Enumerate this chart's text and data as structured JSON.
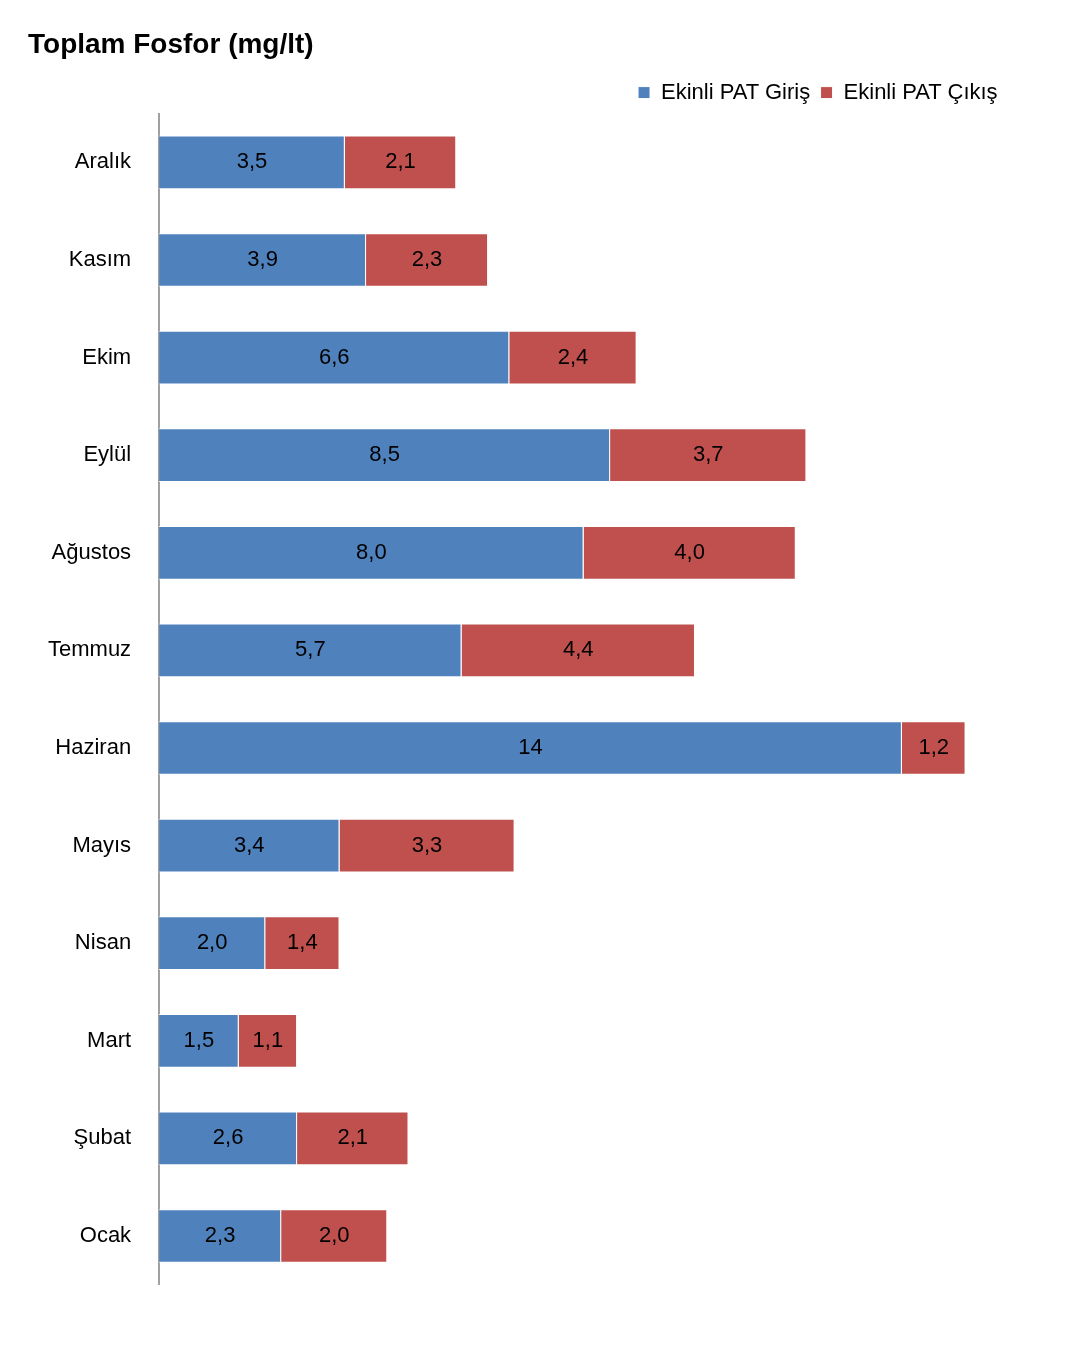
{
  "chart_data": {
    "type": "bar",
    "orientation": "horizontal",
    "stacked": true,
    "title": "Toplam Fosfor (mg/lt)",
    "categories": [
      "Aralık",
      "Kasım",
      "Ekim",
      "Eylül",
      "Ağustos",
      "Temmuz",
      "Haziran",
      "Mayıs",
      "Nisan",
      "Mart",
      "Şubat",
      "Ocak"
    ],
    "series": [
      {
        "name": "Ekinli PAT Giriş",
        "color": "#4f81bd",
        "values": [
          3.5,
          3.9,
          6.6,
          8.5,
          8.0,
          5.7,
          14,
          3.4,
          2.0,
          1.5,
          2.6,
          2.3
        ],
        "value_labels": [
          "3,5",
          "3,9",
          "6,6",
          "8,5",
          "8,0",
          "5,7",
          "14",
          "3,4",
          "2,0",
          "1,5",
          "2,6",
          "2,3"
        ]
      },
      {
        "name": "Ekinli PAT Çıkış",
        "color": "#c0504d",
        "values": [
          2.1,
          2.3,
          2.4,
          3.7,
          4.0,
          4.4,
          1.2,
          3.3,
          1.4,
          1.1,
          2.1,
          2.0
        ],
        "value_labels": [
          "2,1",
          "2,3",
          "2,4",
          "3,7",
          "4,0",
          "4,4",
          "1,2",
          "3,3",
          "1,4",
          "1,1",
          "2,1",
          "2,0"
        ]
      }
    ],
    "tick_labels": "y",
    "grid": false,
    "legend": "top right"
  }
}
